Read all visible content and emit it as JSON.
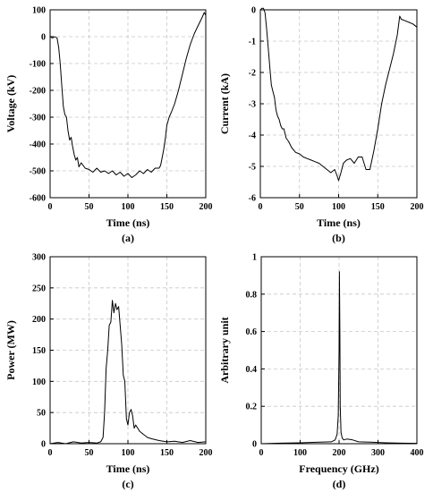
{
  "chart_data": [
    {
      "type": "line",
      "panel_label": "(a)",
      "xlabel": "Time (ns)",
      "ylabel": "Voltage (kV)",
      "xlim": [
        0,
        200
      ],
      "ylim": [
        -600,
        100
      ],
      "xticks": [
        0,
        50,
        100,
        150,
        200
      ],
      "yticks": [
        -600,
        -500,
        -400,
        -300,
        -200,
        -100,
        0,
        100
      ],
      "grid": true,
      "series": [
        {
          "x": [
            0,
            3,
            6,
            9,
            11,
            13,
            15,
            17,
            19,
            21,
            23,
            25,
            27,
            29,
            31,
            33,
            35,
            37,
            40,
            45,
            50,
            55,
            60,
            65,
            70,
            75,
            80,
            85,
            90,
            95,
            100,
            105,
            110,
            115,
            120,
            125,
            130,
            135,
            140,
            142,
            144,
            146,
            148,
            150,
            153,
            156,
            160,
            165,
            170,
            175,
            180,
            185,
            190,
            195,
            198,
            200
          ],
          "y": [
            0,
            -5,
            0,
            -5,
            -40,
            -100,
            -180,
            -260,
            -290,
            -300,
            -350,
            -385,
            -375,
            -410,
            -440,
            -460,
            -450,
            -485,
            -470,
            -490,
            -495,
            -505,
            -490,
            -505,
            -500,
            -510,
            -500,
            -515,
            -505,
            -520,
            -510,
            -525,
            -515,
            -500,
            -510,
            -495,
            -505,
            -490,
            -490,
            -480,
            -450,
            -420,
            -380,
            -330,
            -300,
            -280,
            -250,
            -200,
            -140,
            -80,
            -30,
            10,
            40,
            70,
            90,
            80
          ]
        }
      ]
    },
    {
      "type": "line",
      "panel_label": "(b)",
      "xlabel": "Time (ns)",
      "ylabel": "Current (kA)",
      "xlim": [
        0,
        200
      ],
      "ylim": [
        -6,
        0
      ],
      "xticks": [
        0,
        50,
        100,
        150,
        200
      ],
      "yticks": [
        -6,
        -5,
        -4,
        -3,
        -2,
        -1,
        0
      ],
      "grid": true,
      "series": [
        {
          "x": [
            0,
            2,
            4,
            6,
            8,
            10,
            12,
            14,
            16,
            18,
            20,
            22,
            24,
            26,
            28,
            30,
            33,
            36,
            40,
            45,
            50,
            55,
            60,
            65,
            70,
            75,
            80,
            85,
            90,
            95,
            98,
            100,
            103,
            106,
            110,
            115,
            120,
            125,
            130,
            135,
            140,
            145,
            150,
            155,
            160,
            165,
            170,
            175,
            178,
            180,
            185,
            190,
            195,
            200
          ],
          "y": [
            0,
            0.05,
            0.05,
            -0.1,
            -0.6,
            -1.2,
            -1.8,
            -2.4,
            -2.6,
            -2.8,
            -3.2,
            -3.4,
            -3.5,
            -3.7,
            -3.8,
            -3.8,
            -4.1,
            -4.2,
            -4.4,
            -4.55,
            -4.6,
            -4.7,
            -4.75,
            -4.8,
            -4.85,
            -4.9,
            -5.0,
            -5.1,
            -5.2,
            -5.1,
            -5.3,
            -5.45,
            -5.2,
            -4.9,
            -4.8,
            -4.75,
            -4.9,
            -4.7,
            -4.7,
            -5.1,
            -5.1,
            -4.5,
            -3.8,
            -3.0,
            -2.4,
            -1.9,
            -1.4,
            -0.8,
            -0.2,
            -0.3,
            -0.35,
            -0.4,
            -0.45,
            -0.55
          ]
        }
      ]
    },
    {
      "type": "line",
      "panel_label": "(c)",
      "xlabel": "Time (ns)",
      "ylabel": "Power (MW)",
      "xlim": [
        0,
        200
      ],
      "ylim": [
        0,
        300
      ],
      "xticks": [
        0,
        50,
        100,
        150,
        200
      ],
      "yticks": [
        0,
        50,
        100,
        150,
        200,
        250,
        300
      ],
      "grid": true,
      "series": [
        {
          "x": [
            0,
            10,
            20,
            30,
            40,
            50,
            60,
            65,
            68,
            70,
            72,
            74,
            76,
            78,
            80,
            82,
            84,
            86,
            88,
            90,
            92,
            94,
            96,
            98,
            100,
            102,
            104,
            106,
            108,
            110,
            115,
            120,
            125,
            130,
            140,
            150,
            160,
            170,
            180,
            190,
            200
          ],
          "y": [
            0,
            2,
            0,
            3,
            1,
            2,
            1,
            3,
            10,
            50,
            120,
            150,
            190,
            195,
            230,
            210,
            225,
            215,
            220,
            190,
            160,
            110,
            100,
            40,
            30,
            50,
            55,
            45,
            25,
            30,
            20,
            15,
            10,
            8,
            5,
            3,
            4,
            2,
            5,
            2,
            3
          ]
        }
      ]
    },
    {
      "type": "line",
      "panel_label": "(d)",
      "xlabel": "Frequency (GHz)",
      "ylabel": "Arbitrary unit",
      "xlim": [
        0,
        400
      ],
      "ylim": [
        0,
        1
      ],
      "xticks": [
        0,
        100,
        200,
        300,
        400
      ],
      "yticks": [
        0,
        0.2,
        0.4,
        0.6,
        0.8,
        1
      ],
      "grid": true,
      "series": [
        {
          "x": [
            0,
            50,
            100,
            150,
            180,
            190,
            195,
            198,
            200,
            201,
            202,
            203,
            205,
            208,
            212,
            220,
            235,
            250,
            280,
            320,
            360,
            400
          ],
          "y": [
            0,
            0.003,
            0.005,
            0.008,
            0.01,
            0.02,
            0.05,
            0.15,
            0.5,
            0.92,
            0.6,
            0.2,
            0.06,
            0.03,
            0.02,
            0.025,
            0.02,
            0.01,
            0.008,
            0.005,
            0.003,
            0.002
          ]
        }
      ]
    }
  ]
}
